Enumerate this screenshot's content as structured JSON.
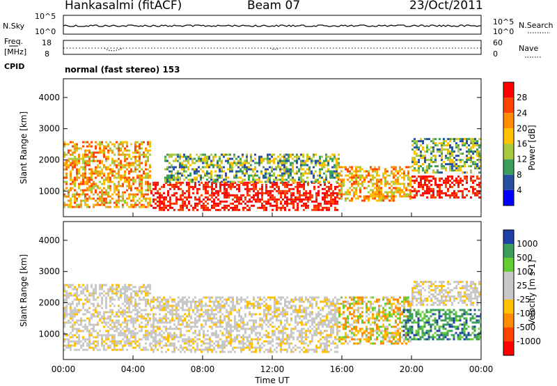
{
  "header": {
    "station": "Hankasalmi (fitACF)",
    "beam": "Beam 07",
    "date": "23/Oct/2011"
  },
  "noise_panel": {
    "left_label": "N.Sky",
    "right_label": "N.Search",
    "left_ticks": [
      "10^5",
      "10^0"
    ],
    "right_ticks": [
      "10^5",
      "10^0"
    ]
  },
  "freq_panel": {
    "left_label_1": "Freq.",
    "left_label_2": "[MHz]",
    "left_ticks": [
      "18",
      "8"
    ],
    "right_label": "Nave",
    "right_ticks": [
      "60",
      "0"
    ]
  },
  "cpid": {
    "label": "CPID",
    "value": "normal (fast stereo) 153"
  },
  "chart_data": [
    {
      "type": "heatmap",
      "name": "Power",
      "ylabel": "Slant Range [km]",
      "xlabel": "",
      "ylim": [
        180,
        4600
      ],
      "yticks": [
        1000,
        2000,
        3000,
        4000
      ],
      "xlim": [
        0,
        24
      ],
      "colorbar_label": "Power [dB]",
      "colorbar_ticks": [
        "28",
        "24",
        "20",
        "16",
        "12",
        "8",
        "4"
      ],
      "colorbar_colors": [
        "#ff0000",
        "#ff4500",
        "#ff8c00",
        "#ffc000",
        "#a8c840",
        "#3c9e5a",
        "#2850a0",
        "#0000ff"
      ],
      "regions": [
        {
          "t": [
            0.0,
            5.0
          ],
          "r": [
            500,
            2600
          ],
          "level": "medium"
        },
        {
          "t": [
            5.0,
            15.8
          ],
          "r": [
            400,
            1300
          ],
          "level": "high"
        },
        {
          "t": [
            5.8,
            15.8
          ],
          "r": [
            1300,
            2200
          ],
          "level": "low"
        },
        {
          "t": [
            15.8,
            20.0
          ],
          "r": [
            700,
            1800
          ],
          "level": "medium"
        },
        {
          "t": [
            20.0,
            24.0
          ],
          "r": [
            800,
            1500
          ],
          "level": "high"
        },
        {
          "t": [
            20.0,
            24.0
          ],
          "r": [
            1600,
            2700
          ],
          "level": "low"
        }
      ]
    },
    {
      "type": "heatmap",
      "name": "Velocity",
      "ylabel": "Slant Range [km]",
      "xlabel": "Time UT",
      "ylim": [
        180,
        4600
      ],
      "yticks": [
        1000,
        2000,
        3000,
        4000
      ],
      "xlim": [
        0,
        24
      ],
      "xticks": [
        "00:00",
        "04:00",
        "08:00",
        "12:00",
        "16:00",
        "20:00",
        "00:00"
      ],
      "colorbar_label": "Velocity [m s-1]",
      "colorbar_ticks": [
        "1000",
        "500",
        "100",
        "25",
        "-25",
        "-100",
        "-500",
        "-1000"
      ],
      "colorbar_colors": [
        "#2040a8",
        "#3c9e5a",
        "#66cc33",
        "#c8c8c8",
        "#c8c8c8",
        "#ffc000",
        "#ff8c00",
        "#ff4500",
        "#ff0000"
      ],
      "regions": [
        {
          "t": [
            0.0,
            5.0
          ],
          "r": [
            500,
            2600
          ],
          "level": "ground"
        },
        {
          "t": [
            5.0,
            15.8
          ],
          "r": [
            400,
            2200
          ],
          "level": "ground"
        },
        {
          "t": [
            15.8,
            20.0
          ],
          "r": [
            700,
            2200
          ],
          "level": "mixed"
        },
        {
          "t": [
            19.5,
            24.0
          ],
          "r": [
            800,
            1800
          ],
          "level": "positive"
        },
        {
          "t": [
            20.0,
            24.0
          ],
          "r": [
            1900,
            2700
          ],
          "level": "ground"
        }
      ]
    }
  ]
}
